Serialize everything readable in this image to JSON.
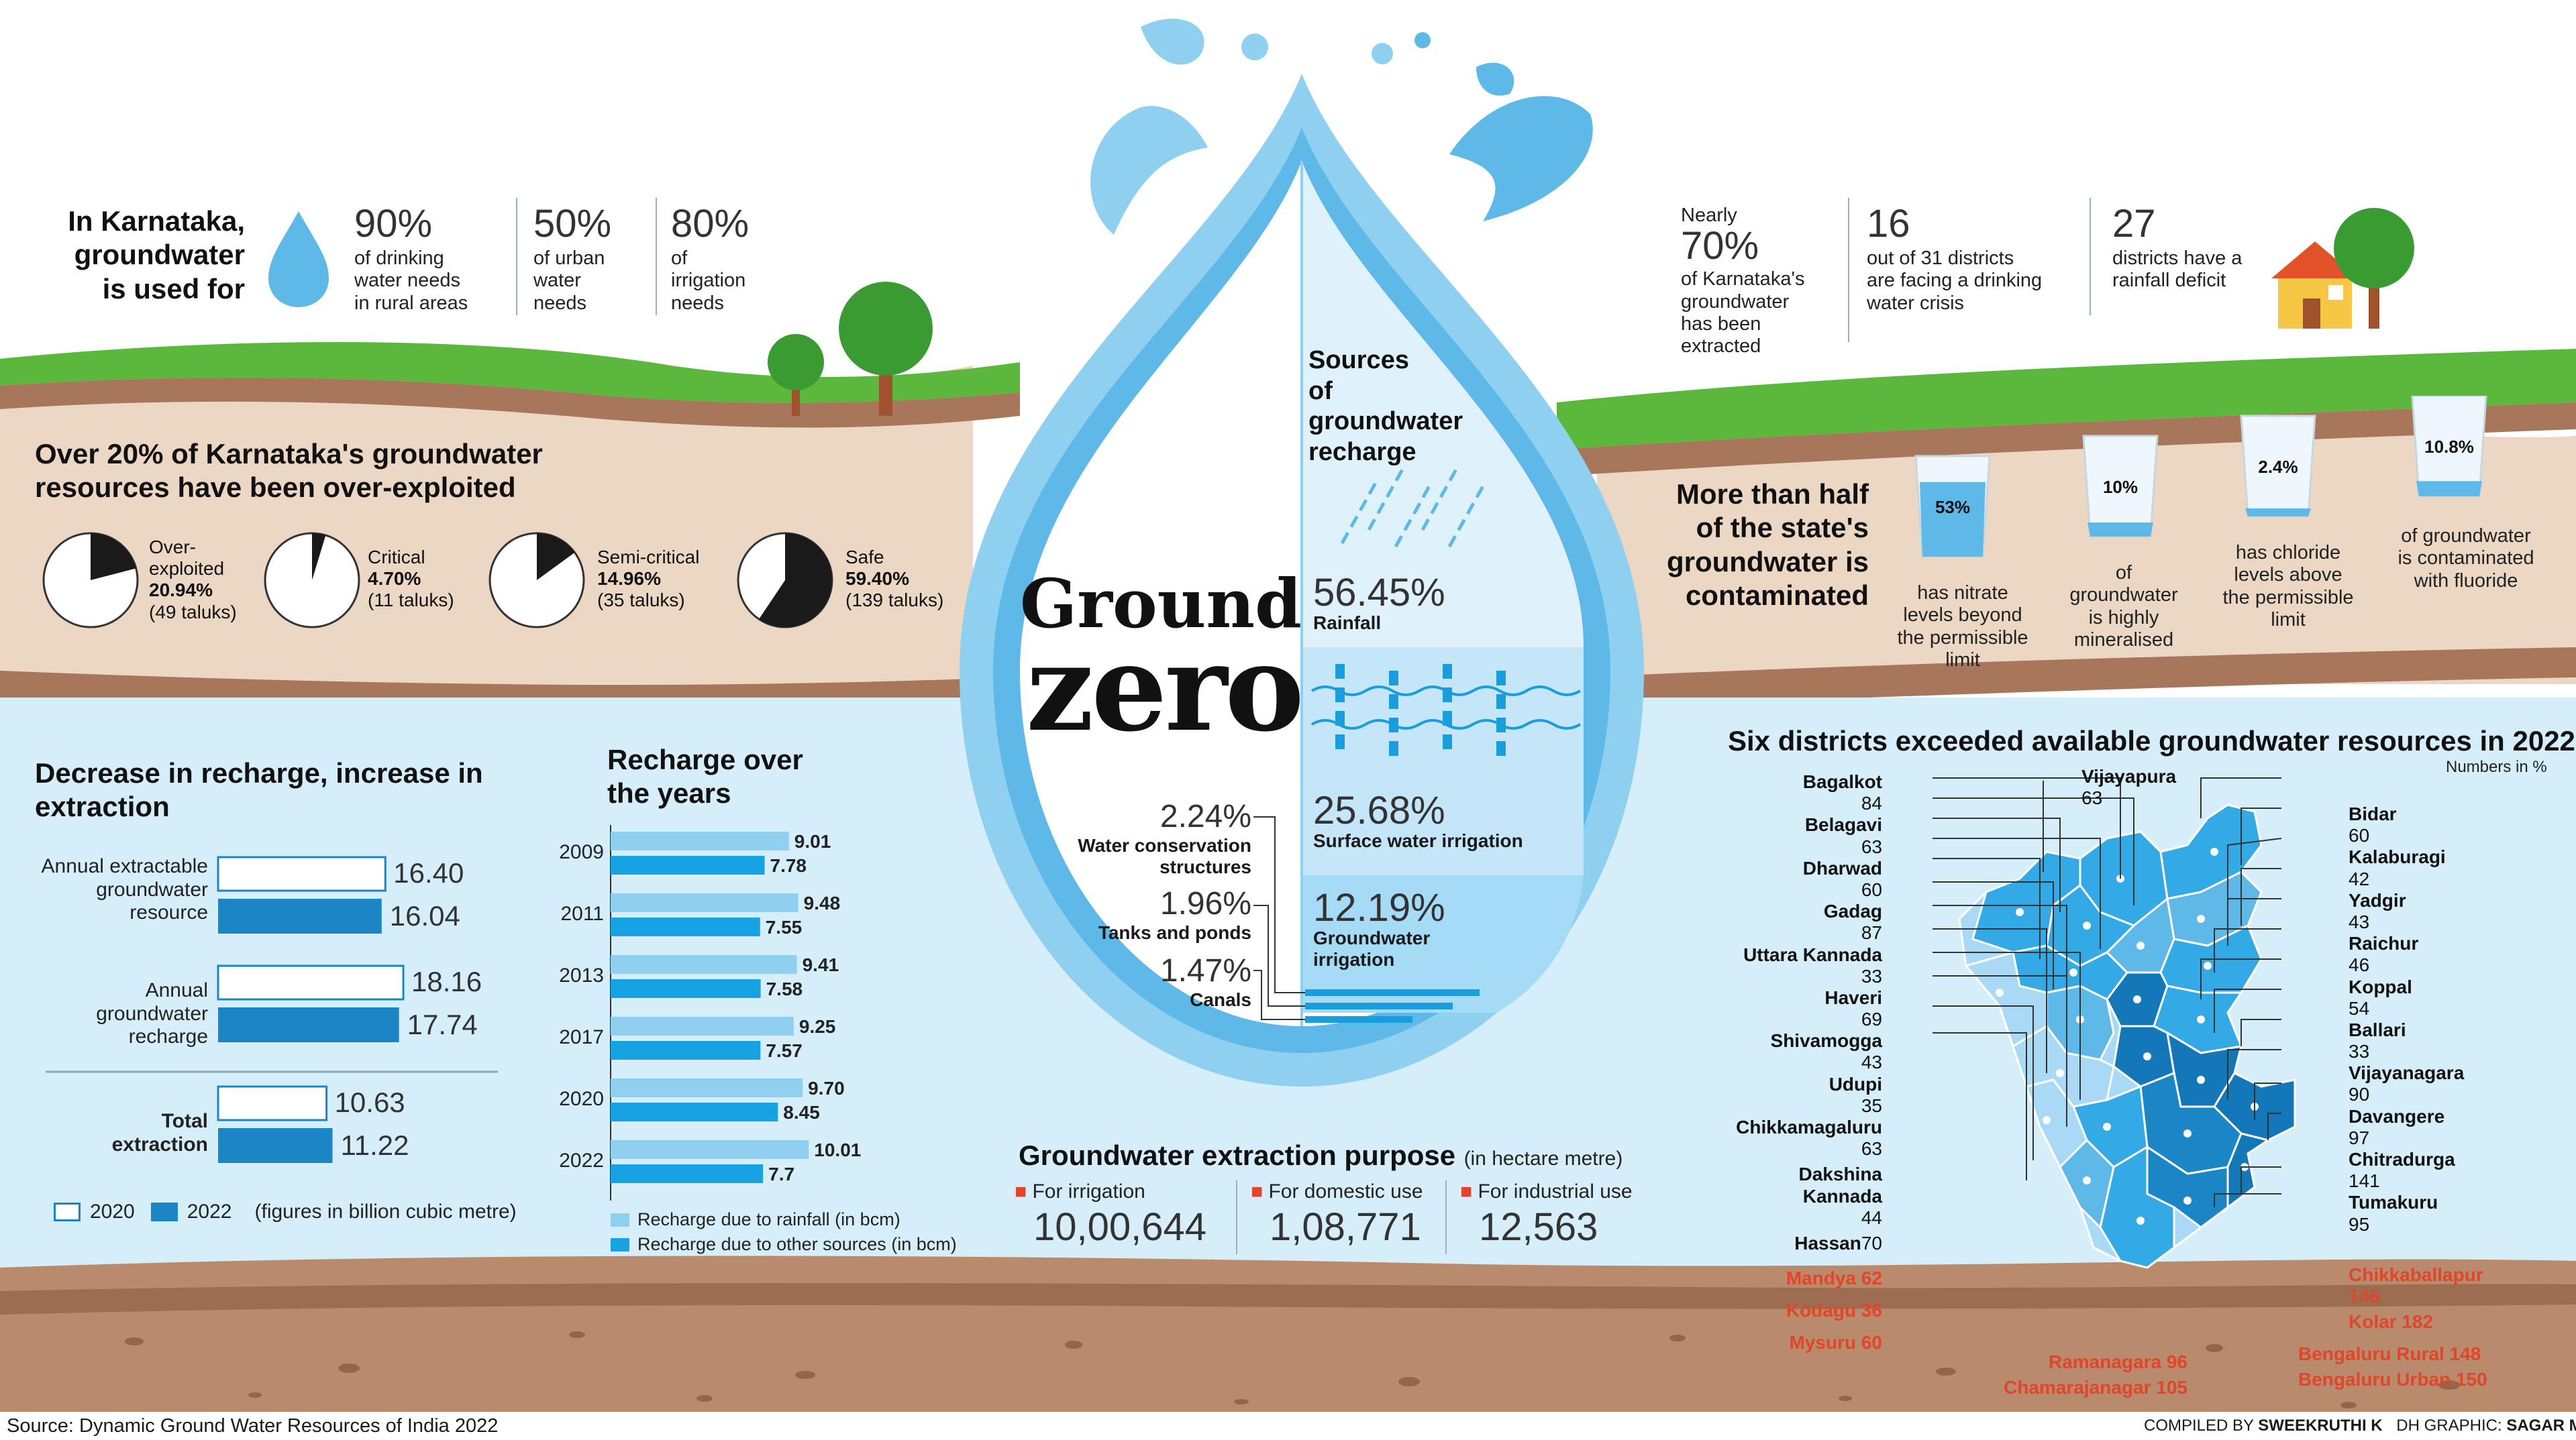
{
  "colors": {
    "grass": "#5cb83c",
    "soil": "#ecd7c5",
    "soil_dark": "#a8765a",
    "water_light": "#d6eef9",
    "water_mid": "#8fd0f0",
    "water_dark": "#1f9ad6",
    "bar_2022": "#1a86c6",
    "bar_rain": "#8fd0f0",
    "bar_other": "#16a2e3",
    "map_dark": "#1477b8",
    "map_mid": "#33a9e6",
    "map_light": "#a9d9f4",
    "marker_red": "#e2452a"
  },
  "title": {
    "line1": "Ground",
    "line2": "zero"
  },
  "usage": {
    "intro": [
      "In Karnataka,",
      "groundwater",
      "is used for"
    ],
    "icon": "water-drop-icon",
    "items": [
      {
        "pct": "90%",
        "text": [
          "of drinking",
          "water needs",
          "in rural areas"
        ]
      },
      {
        "pct": "50%",
        "text": [
          "of urban",
          "water",
          "needs"
        ]
      },
      {
        "pct": "80%",
        "text": [
          "of",
          "irrigation",
          "needs"
        ]
      }
    ]
  },
  "stats": {
    "extracted": {
      "pre": "Nearly",
      "pct": "70%",
      "text": [
        "of Karnataka's",
        "groundwater",
        "has been",
        "extracted"
      ]
    },
    "crisis": {
      "num": "16",
      "text": [
        "out of 31 districts",
        "are facing a drinking",
        "water crisis"
      ]
    },
    "deficit": {
      "num": "27",
      "text": [
        "districts have a",
        "rainfall deficit"
      ]
    }
  },
  "overexploited": {
    "heading": [
      "Over 20% of Karnataka's groundwater",
      "resources have been over-exploited"
    ],
    "pies": [
      {
        "label": [
          "Over-",
          "exploited"
        ],
        "pct": "20.94%",
        "taluks": "(49 taluks)",
        "value": 20.94
      },
      {
        "label": [
          "Critical"
        ],
        "pct": "4.70%",
        "taluks": "(11 taluks)",
        "value": 4.7
      },
      {
        "label": [
          "Semi-critical"
        ],
        "pct": "14.96%",
        "taluks": "(35 taluks)",
        "value": 14.96
      },
      {
        "label": [
          "Safe"
        ],
        "pct": "59.40%",
        "taluks": "(139 taluks)",
        "value": 59.4
      }
    ]
  },
  "contamination": {
    "heading": [
      "More than half",
      "of the state's",
      "groundwater is",
      "contaminated"
    ],
    "glasses": [
      {
        "pct": "53%",
        "value": 53,
        "text": [
          "has nitrate",
          "levels beyond",
          "the permissible",
          "limit"
        ]
      },
      {
        "pct": "10%",
        "value": 10,
        "text": [
          "of",
          "groundwater",
          "is highly",
          "mineralised"
        ]
      },
      {
        "pct": "2.4%",
        "value": 2.4,
        "text": [
          "has chloride",
          "levels above",
          "the permissible",
          "limit"
        ]
      },
      {
        "pct": "10.8%",
        "value": 10.8,
        "text": [
          "of groundwater",
          "is contaminated",
          "with fluoride"
        ]
      }
    ]
  },
  "recharge_sources": {
    "heading": [
      "Sources",
      "of",
      "groundwater",
      "recharge"
    ],
    "right": [
      {
        "pct": "56.45%",
        "label": [
          "Rainfall"
        ]
      },
      {
        "pct": "25.68%",
        "label": [
          "Surface water irrigation"
        ]
      },
      {
        "pct": "12.19%",
        "label": [
          "Groundwater",
          "irrigation"
        ]
      }
    ],
    "left": [
      {
        "pct": "2.24%",
        "label": [
          "Water conservation",
          "structures"
        ]
      },
      {
        "pct": "1.96%",
        "label": [
          "Tanks and ponds"
        ]
      },
      {
        "pct": "1.47%",
        "label": [
          "Canals"
        ]
      }
    ]
  },
  "extraction_purpose": {
    "heading": "Groundwater extraction purpose",
    "unit": "(in hectare metre)",
    "items": [
      {
        "label": "For irrigation",
        "value": "10,00,644"
      },
      {
        "label": "For domestic use",
        "value": "1,08,771"
      },
      {
        "label": "For industrial use",
        "value": "12,563"
      }
    ]
  },
  "footer": {
    "source": "Source: Dynamic Ground Water Resources of India 2022",
    "compiled_label": "COMPILED BY",
    "compiled_name": "SWEEKRUTHI K",
    "graphic_label": "DH GRAPHIC:",
    "graphic_name": "SAGAR M S"
  },
  "chart_data": [
    {
      "type": "bar",
      "title": "Decrease in recharge, increase in extraction",
      "note": "(figures in billion cubic metre)",
      "categories": [
        "Annual extractable groundwater resource",
        "Annual groundwater recharge",
        "Total extraction"
      ],
      "series": [
        {
          "name": "2020",
          "values": [
            16.4,
            18.16,
            10.63
          ]
        },
        {
          "name": "2022",
          "values": [
            16.04,
            17.74,
            11.22
          ]
        }
      ],
      "xlim": [
        0,
        20
      ]
    },
    {
      "type": "bar",
      "title": "Recharge over the years",
      "categories": [
        "2009",
        "2011",
        "2013",
        "2017",
        "2020",
        "2022"
      ],
      "series": [
        {
          "name": "Recharge due to rainfall (in bcm)",
          "values": [
            9.01,
            9.48,
            9.41,
            9.25,
            9.7,
            10.01
          ]
        },
        {
          "name": "Recharge due to other sources (in bcm)",
          "values": [
            7.78,
            7.55,
            7.58,
            7.57,
            8.45,
            7.7
          ]
        }
      ],
      "xlim": [
        0,
        12
      ]
    },
    {
      "type": "table",
      "title": "Six districts exceeded available groundwater resources in 2022",
      "unit": "Numbers in %",
      "left": [
        {
          "name": "Bagalkot",
          "value": "84"
        },
        {
          "name": "Belagavi",
          "value": "63"
        },
        {
          "name": "Dharwad",
          "value": "60"
        },
        {
          "name": "Gadag",
          "value": "87"
        },
        {
          "name": "Uttara Kannada",
          "value": "33"
        },
        {
          "name": "Haveri",
          "value": "69"
        },
        {
          "name": "Shivamogga",
          "value": "43"
        },
        {
          "name": "Udupi",
          "value": "35"
        },
        {
          "name": "Chikkamagaluru",
          "value": "63"
        },
        {
          "name": "Dakshina Kannada",
          "value": "44"
        },
        {
          "name": "Hassan",
          "value": "70"
        }
      ],
      "lower_left": [
        {
          "name": "Mandya",
          "value": "62"
        },
        {
          "name": "Kodagu",
          "value": "36"
        },
        {
          "name": "Mysuru",
          "value": "60"
        }
      ],
      "top": [
        {
          "name": "Vijayapura",
          "value": "63"
        }
      ],
      "right": [
        {
          "name": "Bidar",
          "value": "60"
        },
        {
          "name": "Kalaburagi",
          "value": "42"
        },
        {
          "name": "Yadgir",
          "value": "43"
        },
        {
          "name": "Raichur",
          "value": "46"
        },
        {
          "name": "Koppal",
          "value": "54"
        },
        {
          "name": "Ballari",
          "value": "33"
        },
        {
          "name": "Vijayanagara",
          "value": "90"
        },
        {
          "name": "Davangere",
          "value": "97"
        },
        {
          "name": "Chitradurga",
          "value": "141"
        },
        {
          "name": "Tumakuru",
          "value": "95"
        },
        {
          "name": "Chikkaballapur",
          "value": "146"
        },
        {
          "name": "Kolar",
          "value": "182"
        }
      ],
      "bottom": [
        {
          "name": "Bengaluru Rural",
          "value": "148"
        },
        {
          "name": "Bengaluru Urban",
          "value": "150"
        },
        {
          "name": "Ramanagara",
          "value": "96"
        },
        {
          "name": "Chamarajanagar",
          "value": "105"
        }
      ]
    }
  ]
}
